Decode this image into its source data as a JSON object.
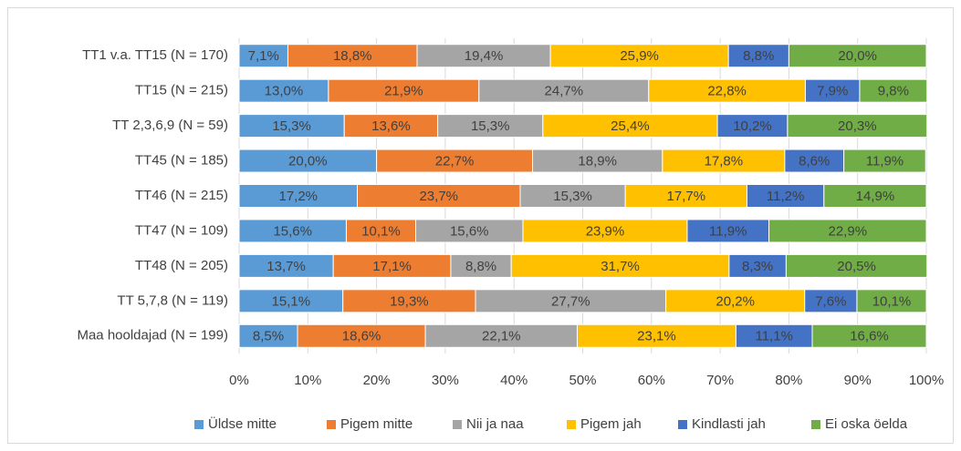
{
  "chart_data": {
    "type": "stacked_bar_horizontal",
    "categories": [
      "TT1 v.a. TT15 (N = 170)",
      "TT15 (N = 215)",
      "TT 2,3,6,9 (N = 59)",
      "TT45 (N = 185)",
      "TT46 (N = 215)",
      "TT47 (N = 109)",
      "TT48 (N = 205)",
      "TT 5,7,8 (N = 119)",
      "Maa hooldajad (N = 199)"
    ],
    "series": [
      {
        "name": "Üldse mitte",
        "color": "#5b9bd5",
        "values": [
          7.1,
          13.0,
          15.3,
          20.0,
          17.2,
          15.6,
          13.7,
          15.1,
          8.5
        ],
        "value_labels": [
          "7,1%",
          "13,0%",
          "15,3%",
          "20,0%",
          "17,2%",
          "15,6%",
          "13,7%",
          "15,1%",
          "8,5%"
        ]
      },
      {
        "name": "Pigem mitte",
        "color": "#ed7d31",
        "values": [
          18.8,
          21.9,
          13.6,
          22.7,
          23.7,
          10.1,
          17.1,
          19.3,
          18.6
        ],
        "value_labels": [
          "18,8%",
          "21,9%",
          "13,6%",
          "22,7%",
          "23,7%",
          "10,1%",
          "17,1%",
          "19,3%",
          "18,6%"
        ]
      },
      {
        "name": "Nii ja naa",
        "color": "#a5a5a5",
        "values": [
          19.4,
          24.7,
          15.3,
          18.9,
          15.3,
          15.6,
          8.8,
          27.7,
          22.1
        ],
        "value_labels": [
          "19,4%",
          "24,7%",
          "15,3%",
          "18,9%",
          "15,3%",
          "15,6%",
          "8,8%",
          "27,7%",
          "22,1%"
        ]
      },
      {
        "name": "Pigem jah",
        "color": "#ffc000",
        "values": [
          25.9,
          22.8,
          25.4,
          17.8,
          17.7,
          23.9,
          31.7,
          20.2,
          23.1
        ],
        "value_labels": [
          "25,9%",
          "22,8%",
          "25,4%",
          "17,8%",
          "17,7%",
          "23,9%",
          "31,7%",
          "20,2%",
          "23,1%"
        ]
      },
      {
        "name": "Kindlasti jah",
        "color": "#4472c4",
        "values": [
          8.8,
          7.9,
          10.2,
          8.6,
          11.2,
          11.9,
          8.3,
          7.6,
          11.1
        ],
        "value_labels": [
          "8,8%",
          "7,9%",
          "10,2%",
          "8,6%",
          "11,2%",
          "11,9%",
          "8,3%",
          "7,6%",
          "11,1%"
        ]
      },
      {
        "name": "Ei oska öelda",
        "color": "#70ad47",
        "values": [
          20.0,
          9.8,
          20.3,
          11.9,
          14.9,
          22.9,
          20.5,
          10.1,
          16.6
        ],
        "value_labels": [
          "20,0%",
          "9,8%",
          "20,3%",
          "11,9%",
          "14,9%",
          "22,9%",
          "20,5%",
          "10,1%",
          "16,6%"
        ]
      }
    ],
    "xlim": [
      0,
      100
    ],
    "xticks": [
      {
        "value": 0,
        "label": "0%"
      },
      {
        "value": 10,
        "label": "10%"
      },
      {
        "value": 20,
        "label": "20%"
      },
      {
        "value": 30,
        "label": "30%"
      },
      {
        "value": 40,
        "label": "40%"
      },
      {
        "value": 50,
        "label": "50%"
      },
      {
        "value": 60,
        "label": "60%"
      },
      {
        "value": 70,
        "label": "70%"
      },
      {
        "value": 80,
        "label": "80%"
      },
      {
        "value": 90,
        "label": "90%"
      },
      {
        "value": 100,
        "label": "100%"
      }
    ],
    "grid": true,
    "legend": "bottom"
  }
}
